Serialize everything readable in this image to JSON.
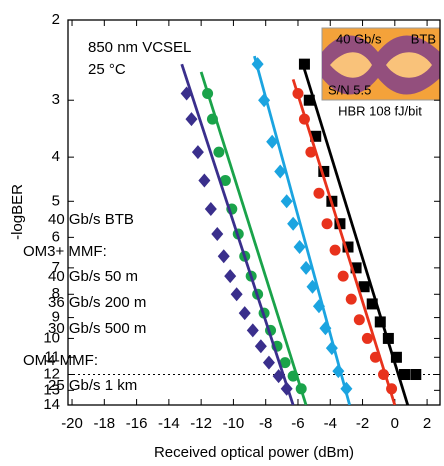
{
  "chart_data": {
    "type": "scatter",
    "xlabel": "Received optical power (dBm)",
    "ylabel": "-logBER",
    "xlim": [
      -20.25,
      2.8
    ],
    "xticks": [
      -20,
      -18,
      -16,
      -14,
      -12,
      -10,
      -8,
      -6,
      -4,
      -2,
      0,
      2
    ],
    "ylim": [
      2,
      14
    ],
    "yticks": [
      2,
      3,
      4,
      5,
      6,
      7,
      8,
      9,
      10,
      11,
      12,
      13,
      14
    ],
    "yscale": "log",
    "y_reversed": true,
    "reference_line": 12,
    "annotations": [
      "850 nm VCSEL",
      "25 °C",
      "40 Gb/s",
      "BTB",
      "S/N 5.5",
      "HBR 108 fJ/bit"
    ],
    "series": [
      {
        "name": "40 Gb/s BTB",
        "color": "#000000",
        "marker": "square",
        "x": [
          -5.6,
          -5.3,
          -4.9,
          -4.4,
          -3.9,
          -3.4,
          -2.9,
          -2.4,
          -1.9,
          -1.4,
          -0.9,
          -0.4,
          0.1,
          0.6,
          1.3
        ],
        "values": [
          2.5,
          3.0,
          3.6,
          4.3,
          5.0,
          5.6,
          6.3,
          7.0,
          7.7,
          8.4,
          9.2,
          10.0,
          11.0,
          12.0,
          12.0
        ],
        "fit_x": [
          -5.7,
          0.8
        ],
        "fit_y": [
          2.5,
          14
        ]
      },
      {
        "name": "40 Gb/s 50 m",
        "group": "OM3+ MMF:",
        "color": "#e8321c",
        "marker": "circle",
        "x": [
          -6.0,
          -5.6,
          -5.2,
          -4.7,
          -4.2,
          -3.7,
          -3.2,
          -2.7,
          -2.2,
          -1.7,
          -1.2,
          -0.7,
          -0.2
        ],
        "values": [
          2.9,
          3.3,
          3.9,
          4.8,
          5.6,
          6.4,
          7.3,
          8.2,
          9.1,
          10.0,
          11.0,
          12.0,
          12.9
        ],
        "fit_x": [
          -6.3,
          0.0
        ],
        "fit_y": [
          2.7,
          14
        ]
      },
      {
        "name": "36 Gb/s 200 m",
        "color": "#1ba4e0",
        "marker": "diamond",
        "x": [
          -8.5,
          -8.1,
          -7.6,
          -7.1,
          -6.7,
          -6.3,
          -5.9,
          -5.5,
          -5.1,
          -4.7,
          -4.3,
          -3.9,
          -3.5,
          -3.0
        ],
        "values": [
          2.5,
          3.0,
          3.7,
          4.3,
          5.0,
          5.6,
          6.3,
          7.0,
          7.7,
          8.5,
          9.5,
          10.5,
          11.8,
          12.9
        ],
        "fit_x": [
          -8.7,
          -2.8
        ],
        "fit_y": [
          2.4,
          14
        ]
      },
      {
        "name": "30 Gb/s 500 m",
        "color": "#1aa34a",
        "marker": "circle",
        "x": [
          -11.6,
          -11.3,
          -10.9,
          -10.5,
          -10.1,
          -9.7,
          -9.3,
          -8.9,
          -8.5,
          -8.1,
          -7.7,
          -7.3,
          -6.8,
          -6.3,
          -5.8
        ],
        "values": [
          2.9,
          3.3,
          3.9,
          4.5,
          5.2,
          5.9,
          6.6,
          7.3,
          8.0,
          8.8,
          9.6,
          10.4,
          11.3,
          12.1,
          12.9
        ],
        "fit_x": [
          -12.0,
          -5.5
        ],
        "fit_y": [
          2.6,
          14
        ]
      },
      {
        "name": "25 Gb/s 1 km",
        "group": "OM4 MMF:",
        "color": "#3a2f8c",
        "marker": "diamond",
        "x": [
          -12.9,
          -12.6,
          -12.2,
          -11.8,
          -11.4,
          -11.0,
          -10.6,
          -10.2,
          -9.8,
          -9.3,
          -8.8,
          -8.3,
          -7.8,
          -7.2,
          -6.7
        ],
        "values": [
          2.9,
          3.3,
          3.9,
          4.5,
          5.2,
          5.9,
          6.6,
          7.3,
          8.0,
          8.8,
          9.6,
          10.4,
          11.3,
          12.1,
          12.9
        ],
        "fit_x": [
          -13.2,
          -6.3
        ],
        "fit_y": [
          2.5,
          14
        ]
      }
    ]
  }
}
